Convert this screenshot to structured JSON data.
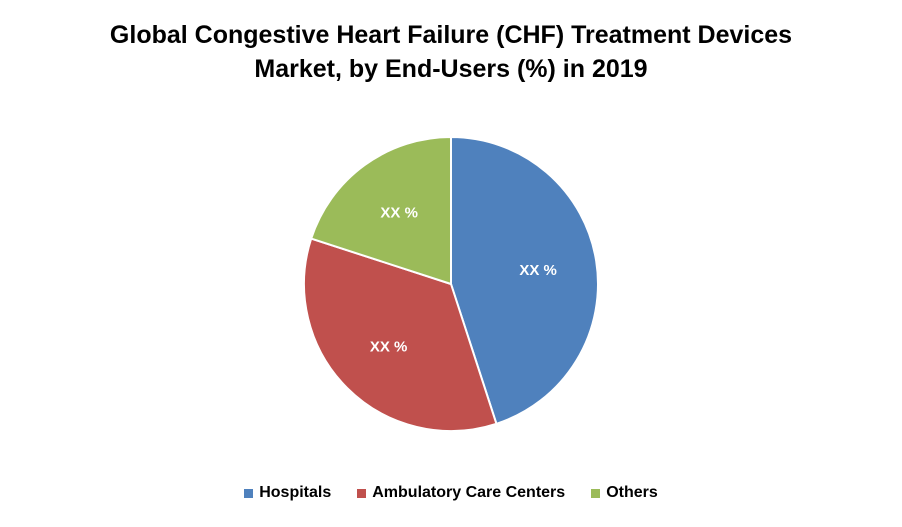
{
  "chart_data": {
    "type": "pie",
    "title": "Global Congestive Heart Failure (CHF) Treatment Devices Market, by End-Users (%) in 2019",
    "title_lines": [
      "Global Congestive Heart Failure (CHF) Treatment Devices",
      "Market, by End-Users (%) in 2019"
    ],
    "categories": [
      "Hospitals",
      "Ambulatory Care Centers",
      "Others"
    ],
    "values": [
      45,
      35,
      20
    ],
    "data_labels": [
      "XX %",
      "XX %",
      "XX %"
    ],
    "colors": [
      "#4F81BD",
      "#C0504D",
      "#9BBB59"
    ],
    "legend_position": "bottom"
  }
}
